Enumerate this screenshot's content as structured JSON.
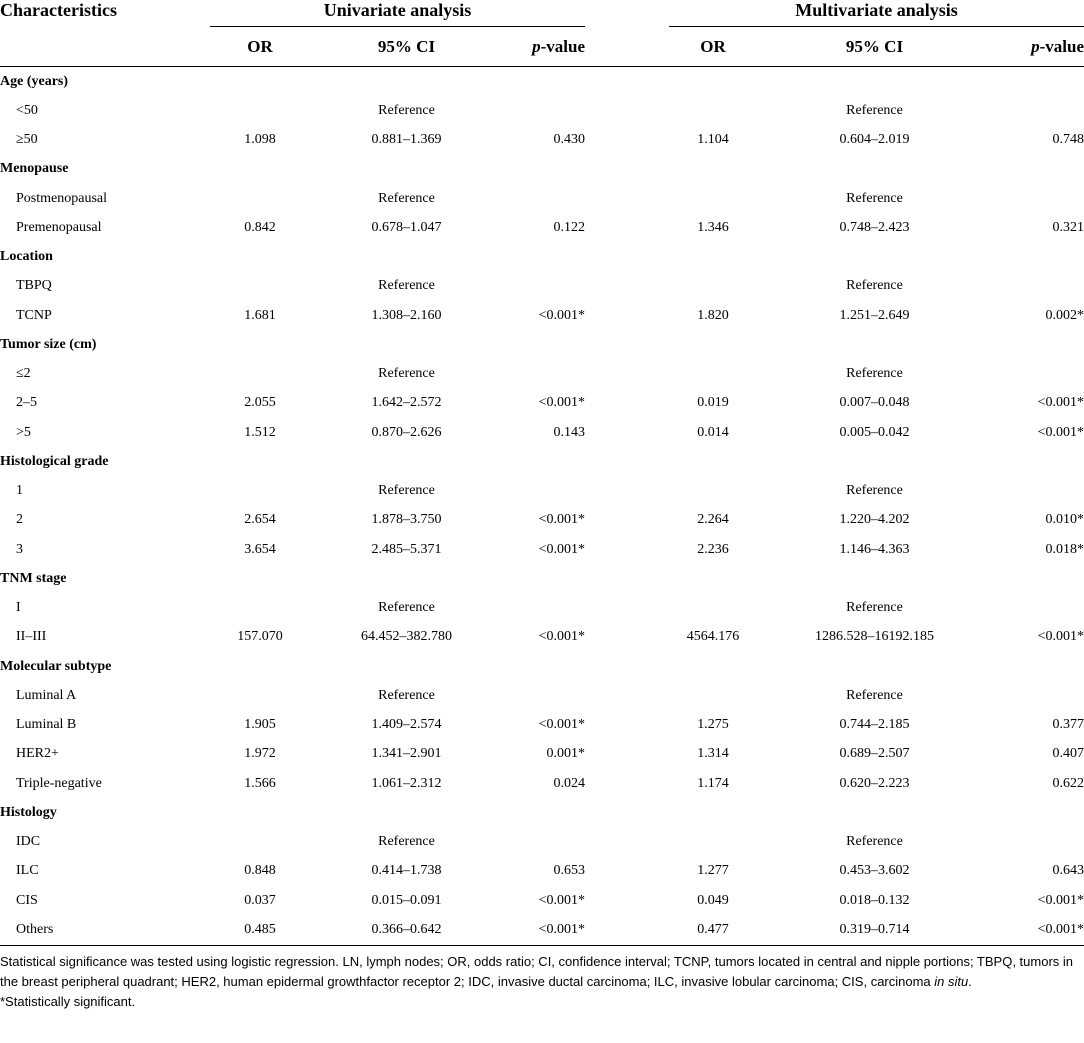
{
  "header": {
    "characteristics": "Characteristics",
    "univariate": "Univariate analysis",
    "multivariate": "Multivariate analysis",
    "or": "OR",
    "ci": "95% CI",
    "p_italic": "p",
    "p_rest": "-value"
  },
  "rows": [
    {
      "type": "cat",
      "label": "Age (years)"
    },
    {
      "type": "ref",
      "label": "<50",
      "ref": "Reference"
    },
    {
      "type": "data",
      "label": "≥50",
      "u": [
        "1.098",
        "0.881–1.369",
        "0.430"
      ],
      "m": [
        "1.104",
        "0.604–2.019",
        "0.748"
      ]
    },
    {
      "type": "cat",
      "label": "Menopause"
    },
    {
      "type": "ref",
      "label": "Postmenopausal",
      "ref": "Reference"
    },
    {
      "type": "data",
      "label": "Premenopausal",
      "u": [
        "0.842",
        "0.678–1.047",
        "0.122"
      ],
      "m": [
        "1.346",
        "0.748–2.423",
        "0.321"
      ]
    },
    {
      "type": "cat",
      "label": "Location"
    },
    {
      "type": "ref",
      "label": "TBPQ",
      "ref": "Reference"
    },
    {
      "type": "data",
      "label": "TCNP",
      "u": [
        "1.681",
        "1.308–2.160",
        "<0.001*"
      ],
      "m": [
        "1.820",
        "1.251–2.649",
        "0.002*"
      ]
    },
    {
      "type": "cat",
      "label": "Tumor size (cm)"
    },
    {
      "type": "ref",
      "label": "≤2",
      "ref": "Reference"
    },
    {
      "type": "data",
      "label": "2–5",
      "u": [
        "2.055",
        "1.642–2.572",
        "<0.001*"
      ],
      "m": [
        "0.019",
        "0.007–0.048",
        "<0.001*"
      ]
    },
    {
      "type": "data",
      "label": ">5",
      "u": [
        "1.512",
        "0.870–2.626",
        "0.143"
      ],
      "m": [
        "0.014",
        "0.005–0.042",
        "<0.001*"
      ]
    },
    {
      "type": "cat",
      "label": "Histological grade"
    },
    {
      "type": "ref",
      "label": "1",
      "ref": "Reference"
    },
    {
      "type": "data",
      "label": "2",
      "u": [
        "2.654",
        "1.878–3.750",
        "<0.001*"
      ],
      "m": [
        "2.264",
        "1.220–4.202",
        "0.010*"
      ]
    },
    {
      "type": "data",
      "label": "3",
      "u": [
        "3.654",
        "2.485–5.371",
        "<0.001*"
      ],
      "m": [
        "2.236",
        "1.146–4.363",
        "0.018*"
      ]
    },
    {
      "type": "cat",
      "label": "TNM stage"
    },
    {
      "type": "ref",
      "label": "I",
      "ref": "Reference"
    },
    {
      "type": "data",
      "label": "II–III",
      "u": [
        "157.070",
        "64.452–382.780",
        "<0.001*"
      ],
      "m": [
        "4564.176",
        "1286.528–16192.185",
        "<0.001*"
      ]
    },
    {
      "type": "cat",
      "label": "Molecular subtype"
    },
    {
      "type": "ref",
      "label": "Luminal A",
      "ref": "Reference"
    },
    {
      "type": "data",
      "label": "Luminal B",
      "u": [
        "1.905",
        "1.409–2.574",
        "<0.001*"
      ],
      "m": [
        "1.275",
        "0.744–2.185",
        "0.377"
      ]
    },
    {
      "type": "data",
      "label": "HER2+",
      "u": [
        "1.972",
        "1.341–2.901",
        "0.001*"
      ],
      "m": [
        "1.314",
        "0.689–2.507",
        "0.407"
      ]
    },
    {
      "type": "data",
      "label": "Triple-negative",
      "u": [
        "1.566",
        "1.061–2.312",
        "0.024"
      ],
      "m": [
        "1.174",
        "0.620–2.223",
        "0.622"
      ]
    },
    {
      "type": "cat",
      "label": "Histology"
    },
    {
      "type": "ref",
      "label": "IDC",
      "ref": "Reference"
    },
    {
      "type": "data",
      "label": "ILC",
      "u": [
        "0.848",
        "0.414–1.738",
        "0.653"
      ],
      "m": [
        "1.277",
        "0.453–3.602",
        "0.643"
      ]
    },
    {
      "type": "data",
      "label": "CIS",
      "u": [
        "0.037",
        "0.015–0.091",
        "<0.001*"
      ],
      "m": [
        "0.049",
        "0.018–0.132",
        "<0.001*"
      ]
    },
    {
      "type": "data",
      "label": "Others",
      "u": [
        "0.485",
        "0.366–0.642",
        "<0.001*"
      ],
      "m": [
        "0.477",
        "0.319–0.714",
        "<0.001*"
      ]
    }
  ],
  "footnote": {
    "main": "Statistical significance was tested using logistic regression. LN, lymph nodes; OR, odds ratio; CI, confidence interval; TCNP, tumors located in central and nipple portions; TBPQ, tumors in the breast peripheral quadrant; HER2, human epidermal growthfactor receptor 2; IDC, invasive ductal carcinoma; ILC, invasive lobular carcinoma; CIS, carcinoma ",
    "main_italic": "in situ",
    "main_end": ".",
    "star": "*Statistically significant."
  }
}
